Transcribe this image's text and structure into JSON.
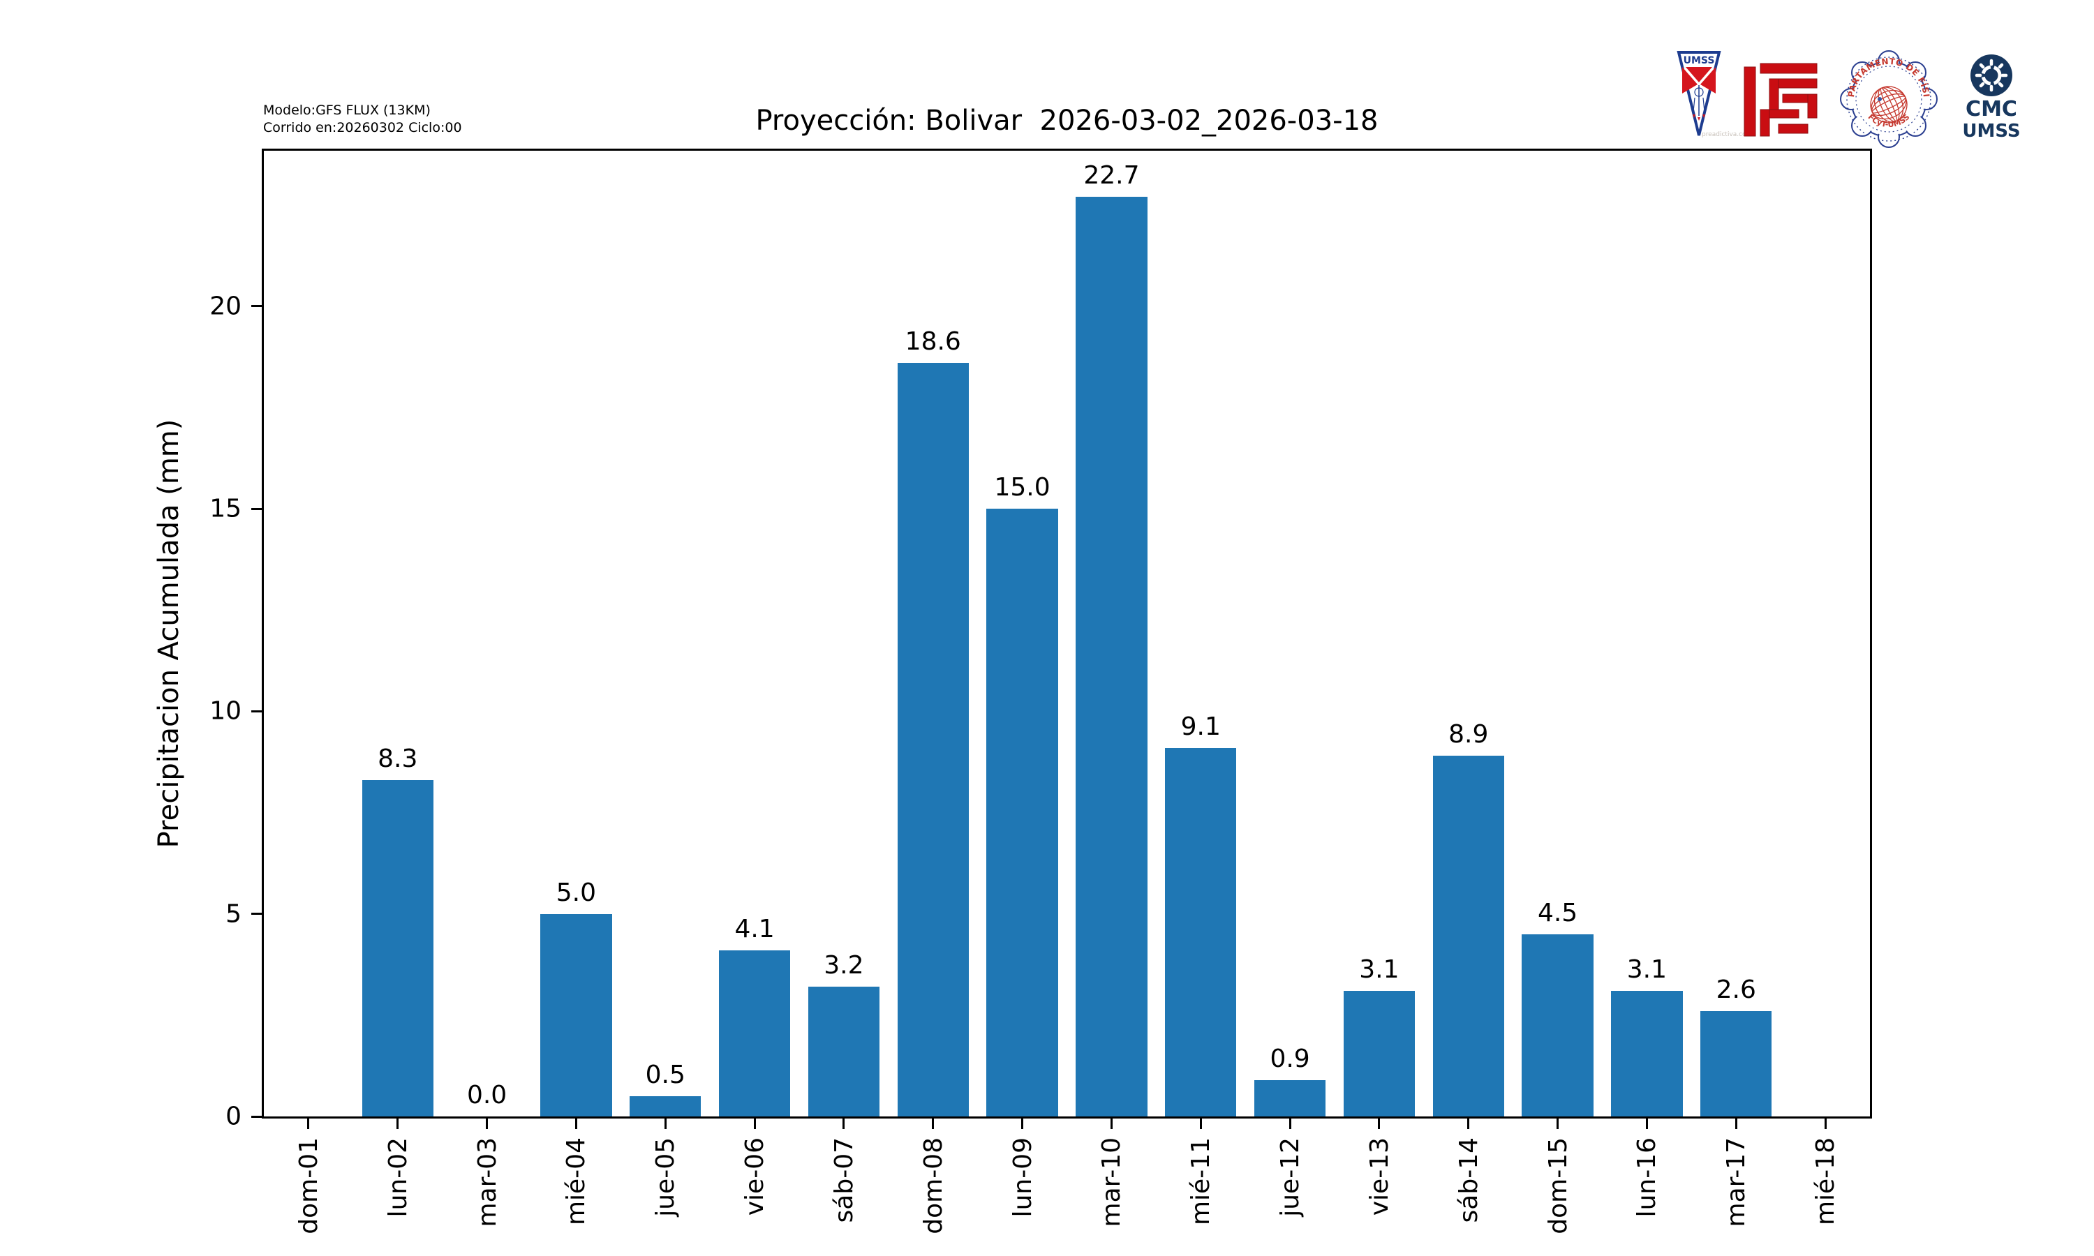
{
  "header": {
    "model_line1": "Modelo:GFS FLUX (13KM)",
    "model_line2": "Corrido en:20260302 Ciclo:00",
    "title": "Proyección: Bolivar  2026-03-02_2026-03-18"
  },
  "logos": {
    "umss_pennant_label": "UMSS",
    "umss_watermark": "preadictiva.com",
    "seal_text_top": "DEPARTAMENTO DE FÍSICA",
    "seal_text_bottom": "FCyT-UMSS",
    "cmc_line1": "CMC",
    "cmc_line2": "UMSS",
    "colors": {
      "umss_blue": "#1d3c8f",
      "umss_red": "#d5151d",
      "maze_red": "#c90d12",
      "seal_blue": "#2b3f90",
      "seal_red": "#c5392f",
      "cmc_navy": "#17375e"
    }
  },
  "chart_data": {
    "type": "bar",
    "title": "Proyección: Bolivar  2026-03-02_2026-03-18",
    "xlabel": "",
    "ylabel": "Precipitacion Acumulada (mm)",
    "categories": [
      "dom-01",
      "lun-02",
      "mar-03",
      "mié-04",
      "jue-05",
      "vie-06",
      "sáb-07",
      "dom-08",
      "lun-09",
      "mar-10",
      "mié-11",
      "jue-12",
      "vie-13",
      "sáb-14",
      "dom-15",
      "lun-16",
      "mar-17",
      "mié-18"
    ],
    "values": [
      null,
      8.3,
      0.0,
      5.0,
      0.5,
      4.1,
      3.2,
      18.6,
      15.0,
      22.7,
      9.1,
      0.9,
      3.1,
      8.9,
      4.5,
      3.1,
      2.6,
      null
    ],
    "bar_labels": [
      "",
      "8.3",
      "0.0",
      "5.0",
      "0.5",
      "4.1",
      "3.2",
      "18.6",
      "15.0",
      "22.7",
      "9.1",
      "0.9",
      "3.1",
      "8.9",
      "4.5",
      "3.1",
      "2.6",
      ""
    ],
    "yticks": [
      0,
      5,
      10,
      15,
      20
    ],
    "ylim": [
      0,
      23.84
    ],
    "grid": false,
    "legend": null,
    "bar_color": "#1f77b4",
    "bar_width_fraction": 0.8
  }
}
